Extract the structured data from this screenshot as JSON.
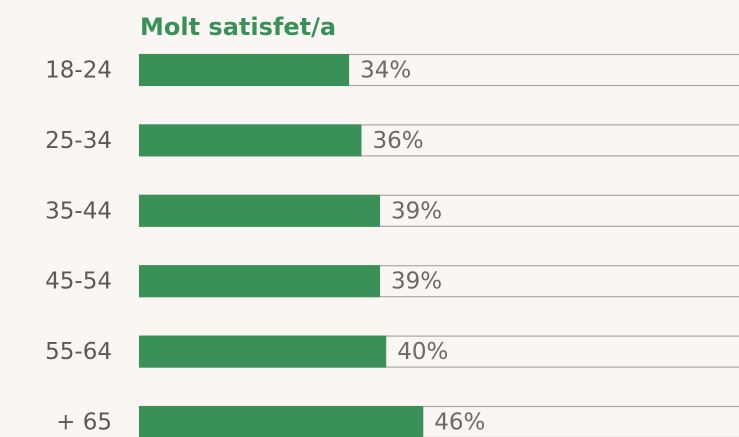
{
  "chart_data": {
    "type": "bar",
    "orientation": "horizontal",
    "title": "Molt satisfet/a",
    "categories": [
      "18-24",
      "25-34",
      "35-44",
      "45-54",
      "55-64",
      "+ 65"
    ],
    "values": [
      34,
      36,
      39,
      39,
      40,
      46
    ],
    "value_labels": [
      "34%",
      "36%",
      "39%",
      "39%",
      "40%",
      "46%"
    ],
    "color": "#3a9158",
    "xlim": [
      0,
      100
    ]
  }
}
